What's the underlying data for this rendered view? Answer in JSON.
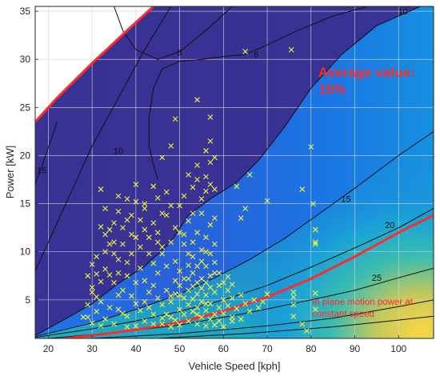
{
  "chart_data": {
    "type": "scatter",
    "title": "",
    "xlabel": "Vehicle Speed [kph]",
    "ylabel": "Power [kW]",
    "xlim": [
      17,
      108
    ],
    "ylim": [
      1,
      35.5
    ],
    "xticks": [
      20,
      30,
      40,
      50,
      60,
      70,
      80,
      90,
      100
    ],
    "yticks": [
      5,
      10,
      15,
      20,
      25,
      30,
      35
    ],
    "grid": true,
    "colors": {
      "field_low": "#3a2e8f",
      "field_mid": "#1f6fe0",
      "field_high": "#f3d447",
      "marker": "#f5f53c",
      "accent": "#ff2a2a",
      "contour": "#111111"
    },
    "annotations": [
      {
        "text": "Average value:",
        "color": "#ff2a2a"
      },
      {
        "text": "15%",
        "color": "#ff2a2a"
      },
      {
        "text": "In plane motion power at",
        "color": "#ff2a2a"
      },
      {
        "text": "constant speed",
        "color": "#ff2a2a"
      }
    ],
    "contours": [
      {
        "label": "10",
        "label_x": 36,
        "label_y": 20.5,
        "points": [
          [
            17,
            8
          ],
          [
            20,
            11
          ],
          [
            25,
            16
          ],
          [
            30,
            21
          ],
          [
            36,
            26
          ],
          [
            42,
            31
          ],
          [
            48,
            35.5
          ]
        ]
      },
      {
        "label": "15",
        "label_x": 18.5,
        "label_y": 18.5,
        "points": [
          [
            17,
            17
          ],
          [
            19,
            19.5
          ],
          [
            22,
            23.5
          ]
        ]
      },
      {
        "label": "6",
        "label_x": 50,
        "label_y": 30.7,
        "points": [
          [
            35,
            35.5
          ],
          [
            37,
            33
          ],
          [
            40,
            31
          ],
          [
            45,
            30
          ],
          [
            50,
            30.8
          ],
          [
            56,
            33
          ],
          [
            62,
            35.5
          ]
        ]
      },
      {
        "label": "6",
        "label_x": 67.5,
        "label_y": 30.5,
        "points": [
          [
            45,
            17.5
          ],
          [
            44,
            19
          ],
          [
            43,
            21
          ],
          [
            43,
            24
          ],
          [
            44,
            27
          ],
          [
            46,
            29
          ],
          [
            50,
            29.8
          ],
          [
            55,
            30
          ],
          [
            60,
            30.3
          ],
          [
            65,
            30.5
          ],
          [
            70,
            31.5
          ],
          [
            77,
            33
          ],
          [
            85,
            34.5
          ],
          [
            93,
            35.5
          ]
        ]
      },
      {
        "label": "10",
        "label_x": 101,
        "label_y": 35,
        "points": [
          [
            17,
            1.3
          ],
          [
            25,
            3.3
          ],
          [
            30,
            4.6
          ],
          [
            36,
            6.7
          ],
          [
            42,
            8.5
          ],
          [
            48,
            11
          ],
          [
            52,
            13.8
          ],
          [
            57,
            15.5
          ],
          [
            63,
            17.2
          ],
          [
            68,
            19.5
          ],
          [
            74,
            23
          ],
          [
            80,
            27
          ],
          [
            87,
            30.5
          ],
          [
            95,
            33.5
          ],
          [
            105,
            35.5
          ]
        ]
      },
      {
        "label": "15",
        "label_x": 88,
        "label_y": 15.5,
        "points": [
          [
            17,
            1.2
          ],
          [
            30,
            2.6
          ],
          [
            40,
            4
          ],
          [
            50,
            5.6
          ],
          [
            58,
            7.3
          ],
          [
            66,
            9.2
          ],
          [
            74,
            11.4
          ],
          [
            82,
            14
          ],
          [
            90,
            16.6
          ],
          [
            100,
            20
          ],
          [
            108,
            22.5
          ]
        ]
      },
      {
        "label": "20",
        "label_x": 98,
        "label_y": 12.8,
        "points": [
          [
            17,
            1.1
          ],
          [
            30,
            2
          ],
          [
            40,
            2.8
          ],
          [
            50,
            3.8
          ],
          [
            60,
            5
          ],
          [
            70,
            6.5
          ],
          [
            80,
            8.4
          ],
          [
            90,
            10.4
          ],
          [
            100,
            12.5
          ],
          [
            108,
            14.5
          ]
        ]
      },
      {
        "label": "25",
        "label_x": 95,
        "label_y": 7.3,
        "points": [
          [
            20,
            1
          ],
          [
            35,
            1.6
          ],
          [
            50,
            2.4
          ],
          [
            65,
            3.6
          ],
          [
            80,
            5
          ],
          [
            90,
            6
          ],
          [
            100,
            7.3
          ],
          [
            108,
            8.3
          ]
        ]
      },
      {
        "points": [
          [
            30,
            1
          ],
          [
            50,
            1.5
          ],
          [
            70,
            2.3
          ],
          [
            85,
            3.1
          ],
          [
            100,
            4.3
          ],
          [
            108,
            5
          ]
        ]
      },
      {
        "points": [
          [
            45,
            1
          ],
          [
            65,
            1.5
          ],
          [
            85,
            2.2
          ],
          [
            100,
            2.9
          ],
          [
            108,
            3.3
          ]
        ]
      }
    ],
    "limit_line": {
      "points": [
        [
          17,
          23.5
        ],
        [
          22,
          26
        ],
        [
          30,
          29.6
        ],
        [
          38,
          33
        ],
        [
          44,
          35.5
        ]
      ]
    },
    "constant_speed_curve": {
      "points": [
        [
          24,
          1
        ],
        [
          30,
          1.3
        ],
        [
          40,
          1.9
        ],
        [
          50,
          2.7
        ],
        [
          60,
          3.8
        ],
        [
          70,
          5.3
        ],
        [
          80,
          7.2
        ],
        [
          90,
          9.5
        ],
        [
          100,
          12
        ],
        [
          108,
          13.8
        ]
      ]
    },
    "scatter": {
      "name": "",
      "points": [
        [
          65,
          30.8
        ],
        [
          75.5,
          31
        ],
        [
          54,
          25.8
        ],
        [
          49,
          23.8
        ],
        [
          57,
          24
        ],
        [
          80,
          20.9
        ],
        [
          48,
          21
        ],
        [
          46,
          19.8
        ],
        [
          66,
          18
        ],
        [
          78,
          16.5
        ],
        [
          80.5,
          15
        ],
        [
          70,
          15.3
        ],
        [
          81,
          12.3
        ],
        [
          81,
          11
        ],
        [
          81,
          10.8
        ],
        [
          63,
          16.8
        ],
        [
          65,
          14.5
        ],
        [
          64,
          13.5
        ],
        [
          76,
          5.8
        ],
        [
          76,
          5.3
        ],
        [
          76,
          4.5
        ],
        [
          76,
          3.3
        ],
        [
          81,
          5.7
        ],
        [
          78,
          2.5
        ],
        [
          79,
          1.8
        ],
        [
          81,
          4
        ],
        [
          32,
          16.5
        ],
        [
          33,
          14.5
        ],
        [
          35,
          13
        ],
        [
          36,
          15.8
        ],
        [
          37,
          12.5
        ],
        [
          38,
          13.3
        ],
        [
          39,
          11.8
        ],
        [
          40,
          15.2
        ],
        [
          41,
          10.5
        ],
        [
          42,
          14.5
        ],
        [
          44,
          13
        ],
        [
          45,
          12
        ],
        [
          46,
          9.8
        ],
        [
          47,
          16.2
        ],
        [
          48,
          11
        ],
        [
          49,
          12.5
        ],
        [
          50,
          14.8
        ],
        [
          51,
          10.8
        ],
        [
          52,
          13.2
        ],
        [
          52,
          18
        ],
        [
          53,
          16.7
        ],
        [
          54,
          19
        ],
        [
          55,
          15.5
        ],
        [
          56,
          17.8
        ],
        [
          56,
          20.5
        ],
        [
          57,
          19.3
        ],
        [
          57,
          21.5
        ],
        [
          58,
          16.5
        ],
        [
          58,
          13.5
        ],
        [
          57,
          12.8
        ],
        [
          56,
          11.5
        ],
        [
          55,
          10.2
        ],
        [
          54,
          12
        ],
        [
          53,
          9.5
        ],
        [
          55,
          14
        ],
        [
          57,
          17
        ],
        [
          58,
          19.8
        ],
        [
          56,
          16.3
        ],
        [
          54,
          17.5
        ],
        [
          53,
          14
        ],
        [
          51,
          15.8
        ],
        [
          49,
          9
        ],
        [
          47,
          8.5
        ],
        [
          45,
          11
        ],
        [
          43,
          9.8
        ],
        [
          42,
          12.3
        ],
        [
          40,
          11.5
        ],
        [
          39,
          13.8
        ],
        [
          37,
          10.8
        ],
        [
          36,
          9.2
        ],
        [
          35,
          11
        ],
        [
          34,
          12.3
        ],
        [
          33,
          10
        ],
        [
          31,
          9.5
        ],
        [
          30,
          8.7
        ],
        [
          29,
          7.5
        ],
        [
          30,
          6.3
        ],
        [
          31,
          5.3
        ],
        [
          32,
          4.8
        ],
        [
          31,
          3.8
        ],
        [
          29,
          3.2
        ],
        [
          33,
          3
        ],
        [
          35,
          2.5
        ],
        [
          36,
          4
        ],
        [
          38,
          3.3
        ],
        [
          37,
          6
        ],
        [
          38,
          7.5
        ],
        [
          40,
          6.8
        ],
        [
          41,
          8.3
        ],
        [
          42,
          7
        ],
        [
          43,
          5.8
        ],
        [
          44,
          6.5
        ],
        [
          45,
          5.2
        ],
        [
          46,
          4.5
        ],
        [
          47,
          6
        ],
        [
          48,
          4.8
        ],
        [
          48,
          3.2
        ],
        [
          49,
          5.6
        ],
        [
          50,
          4
        ],
        [
          50,
          6.5
        ],
        [
          51,
          3.5
        ],
        [
          51,
          5.2
        ],
        [
          52,
          2.8
        ],
        [
          52,
          4.5
        ],
        [
          52,
          6
        ],
        [
          53,
          3.8
        ],
        [
          53,
          5.1
        ],
        [
          53,
          7.8
        ],
        [
          54,
          2.5
        ],
        [
          54,
          4.2
        ],
        [
          54,
          6.8
        ],
        [
          55,
          3.2
        ],
        [
          55,
          4.8
        ],
        [
          55,
          7.2
        ],
        [
          56,
          2.3
        ],
        [
          56,
          3.9
        ],
        [
          56,
          5.5
        ],
        [
          56,
          8.5
        ],
        [
          57,
          3
        ],
        [
          57,
          4.6
        ],
        [
          57,
          6.3
        ],
        [
          58,
          3.5
        ],
        [
          58,
          5.8
        ],
        [
          58,
          7.8
        ],
        [
          59,
          4.2
        ],
        [
          59,
          6.5
        ],
        [
          59,
          2.8
        ],
        [
          60,
          5
        ],
        [
          60,
          3.6
        ],
        [
          61,
          4.4
        ],
        [
          61,
          6
        ],
        [
          62,
          5.2
        ],
        [
          62,
          3.2
        ],
        [
          63,
          4.1
        ],
        [
          64,
          5.5
        ],
        [
          65,
          4.6
        ],
        [
          66,
          3.8
        ],
        [
          67,
          5
        ],
        [
          68,
          4.2
        ],
        [
          69,
          4.8
        ],
        [
          70,
          5.6
        ],
        [
          44,
          3.5
        ],
        [
          43,
          4.2
        ],
        [
          42,
          2.8
        ],
        [
          41,
          3.9
        ],
        [
          40,
          4.6
        ],
        [
          39,
          5.4
        ],
        [
          38,
          2.2
        ],
        [
          37,
          3.6
        ],
        [
          36,
          5.5
        ],
        [
          35,
          6.8
        ],
        [
          34,
          7.6
        ],
        [
          33,
          8.2
        ],
        [
          32,
          6.9
        ],
        [
          31,
          7.7
        ],
        [
          30,
          5.8
        ],
        [
          29,
          4.5
        ],
        [
          28,
          3.2
        ],
        [
          30,
          2.6
        ],
        [
          32,
          2.3
        ],
        [
          34,
          4.2
        ],
        [
          46,
          2.5
        ],
        [
          47,
          3.5
        ],
        [
          48,
          2.2
        ],
        [
          49,
          2.9
        ],
        [
          50,
          2.4
        ],
        [
          45,
          7.8
        ],
        [
          44,
          8.8
        ],
        [
          46,
          10.5
        ],
        [
          43,
          11.5
        ],
        [
          41,
          13.3
        ],
        [
          39,
          9.8
        ],
        [
          38,
          8.9
        ],
        [
          36,
          7.8
        ],
        [
          35,
          9.8
        ],
        [
          34,
          10.8
        ],
        [
          33,
          11.8
        ],
        [
          32,
          12.6
        ],
        [
          47,
          13.8
        ],
        [
          48,
          14.8
        ],
        [
          50,
          12
        ],
        [
          51,
          11.8
        ],
        [
          52,
          9.8
        ],
        [
          53,
          11
        ],
        [
          54,
          8.5
        ],
        [
          55,
          9
        ],
        [
          56,
          10
        ],
        [
          57,
          9.8
        ],
        [
          58,
          10.8
        ],
        [
          49,
          7
        ],
        [
          50,
          8
        ],
        [
          51,
          7.2
        ],
        [
          52,
          8.6
        ],
        [
          53,
          6.4
        ],
        [
          54,
          5.6
        ],
        [
          55,
          6.2
        ],
        [
          56,
          6.8
        ],
        [
          57,
          7.5
        ],
        [
          58,
          8.9
        ],
        [
          59,
          7.8
        ],
        [
          60,
          6.8
        ],
        [
          61,
          7.4
        ],
        [
          62,
          6.6
        ],
        [
          40,
          2.3
        ],
        [
          42,
          4.8
        ],
        [
          44,
          2.5
        ],
        [
          46,
          3.1
        ],
        [
          48,
          5.4
        ],
        [
          50,
          5.5
        ],
        [
          52,
          7.2
        ],
        [
          54,
          3.5
        ],
        [
          56,
          4.6
        ],
        [
          58,
          2.4
        ],
        [
          60,
          2.2
        ],
        [
          62,
          2.8
        ],
        [
          64,
          3
        ],
        [
          45,
          15.6
        ],
        [
          46,
          14
        ],
        [
          44,
          16.8
        ],
        [
          42,
          15
        ],
        [
          40,
          17
        ],
        [
          38,
          15.5
        ],
        [
          36,
          14.2
        ]
      ]
    }
  }
}
